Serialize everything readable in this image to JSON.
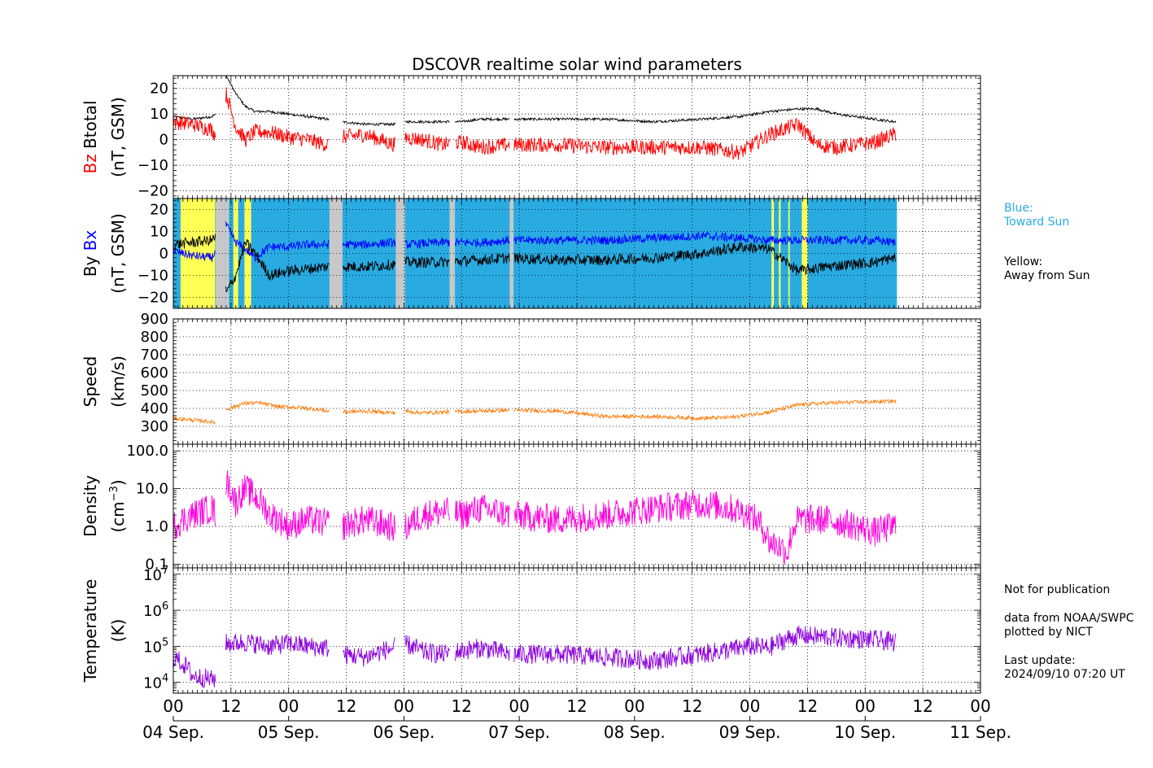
{
  "title": "DSCOVR realtime solar wind parameters",
  "panels": {
    "btotal": {
      "ylabel_parts": [
        "Bz",
        "Btotal"
      ],
      "ylabel_colors": [
        "#ff0000",
        "#000000"
      ],
      "yunit": "(nT, GSM)",
      "yticks": [
        "20",
        "10",
        "0",
        "−10",
        "−20"
      ]
    },
    "by": {
      "ylabel_parts": [
        "By",
        "Bx"
      ],
      "ylabel_colors": [
        "#000000",
        "#0000ff"
      ],
      "yunit": "(nT, GSM)",
      "yticks": [
        "20",
        "10",
        "0",
        "−10",
        "−20"
      ]
    },
    "speed": {
      "ylabel": "Speed",
      "yunit": "(km/s)",
      "yticks": [
        "900",
        "800",
        "700",
        "600",
        "500",
        "400",
        "300"
      ]
    },
    "density": {
      "ylabel": "Density",
      "yunit_base": "(cm",
      "yunit_sup": "−3",
      "yunit_end": ")",
      "yticks": [
        "100.0",
        "10.0",
        "1.0",
        "0.1"
      ]
    },
    "temperature": {
      "ylabel": "Temperature",
      "yunit": "(K)",
      "yticks_base": [
        "10",
        "10",
        "10",
        "10"
      ],
      "yticks_exp": [
        "7",
        "6",
        "5",
        "4"
      ]
    }
  },
  "xaxis": {
    "hour_labels": [
      "00",
      "12",
      "00",
      "12",
      "00",
      "12",
      "00",
      "12",
      "00",
      "12",
      "00",
      "12",
      "00",
      "12",
      "00"
    ],
    "date_labels": [
      "04 Sep.",
      "05 Sep.",
      "06 Sep.",
      "07 Sep.",
      "08 Sep.",
      "09 Sep.",
      "10 Sep.",
      "11 Sep."
    ]
  },
  "legend": {
    "blue": "Blue:\nToward Sun",
    "yellow": "Yellow:\nAway from Sun"
  },
  "notes": {
    "publication": "Not for publication",
    "source": "data from NOAA/SWPC\nplotted by NICT",
    "update": "Last update:\n2024/09/10 07:20 UT"
  },
  "colors": {
    "bz": "#ff0000",
    "btotal": "#000000",
    "bx": "#0000ff",
    "by": "#000000",
    "speed": "#ff7f0e",
    "density": "#ff00dd",
    "temperature": "#8b00dd",
    "toward_sun": "#29abe2",
    "away_sun": "#ffff55",
    "no_data": "#c8c8c8",
    "legend_blue": "#29abe2"
  },
  "chart_data": [
    {
      "type": "line",
      "panel": "btotal",
      "x_unit": "hours since 04 Sep. 00 UT",
      "xlim": [
        0,
        168
      ],
      "ylim": [
        -23,
        25
      ],
      "series": [
        {
          "name": "Btotal",
          "points": [
            [
              0,
              9
            ],
            [
              4,
              8
            ],
            [
              8,
              9
            ],
            [
              9,
              10
            ],
            [
              11,
              25
            ],
            [
              13,
              18
            ],
            [
              15,
              13
            ],
            [
              17,
              11
            ],
            [
              20,
              11
            ],
            [
              24,
              10
            ],
            [
              28,
              9
            ],
            [
              32,
              8
            ],
            [
              35,
              7
            ],
            [
              40,
              6
            ],
            [
              46,
              6
            ],
            [
              48,
              7
            ],
            [
              52,
              7
            ],
            [
              56,
              7
            ],
            [
              60,
              7
            ],
            [
              64,
              8
            ],
            [
              70,
              8
            ],
            [
              80,
              8
            ],
            [
              90,
              8
            ],
            [
              100,
              7
            ],
            [
              110,
              8
            ],
            [
              118,
              9
            ],
            [
              124,
              11
            ],
            [
              130,
              12
            ],
            [
              134,
              12
            ],
            [
              138,
              10
            ],
            [
              146,
              8
            ],
            [
              150,
              7
            ]
          ]
        },
        {
          "name": "Bz",
          "points": [
            [
              0,
              7
            ],
            [
              4,
              6
            ],
            [
              8,
              4
            ],
            [
              9,
              1
            ],
            [
              11,
              18
            ],
            [
              13,
              5
            ],
            [
              15,
              0
            ],
            [
              17,
              3
            ],
            [
              20,
              3
            ],
            [
              24,
              1
            ],
            [
              28,
              0
            ],
            [
              32,
              -2
            ],
            [
              35,
              1
            ],
            [
              40,
              2
            ],
            [
              46,
              -2
            ],
            [
              48,
              1
            ],
            [
              52,
              0
            ],
            [
              56,
              -2
            ],
            [
              60,
              -1
            ],
            [
              64,
              -3
            ],
            [
              70,
              -2
            ],
            [
              80,
              -2
            ],
            [
              90,
              -3
            ],
            [
              100,
              -3
            ],
            [
              110,
              -3
            ],
            [
              118,
              -5
            ],
            [
              124,
              2
            ],
            [
              130,
              6
            ],
            [
              134,
              -2
            ],
            [
              138,
              -3
            ],
            [
              146,
              -1
            ],
            [
              150,
              2
            ]
          ]
        }
      ]
    },
    {
      "type": "line",
      "panel": "by",
      "ylim": [
        -25,
        25
      ],
      "series": [
        {
          "name": "Bx",
          "points": [
            [
              0,
              1
            ],
            [
              4,
              -1
            ],
            [
              8,
              -2
            ],
            [
              9,
              2
            ],
            [
              11,
              13
            ],
            [
              13,
              5
            ],
            [
              15,
              2
            ],
            [
              17,
              -2
            ],
            [
              20,
              3
            ],
            [
              24,
              3
            ],
            [
              28,
              4
            ],
            [
              32,
              4
            ],
            [
              36,
              4
            ],
            [
              40,
              4
            ],
            [
              46,
              5
            ],
            [
              48,
              4
            ],
            [
              56,
              5
            ],
            [
              64,
              5
            ],
            [
              70,
              6
            ],
            [
              80,
              6
            ],
            [
              90,
              6
            ],
            [
              100,
              7
            ],
            [
              110,
              8
            ],
            [
              118,
              7
            ],
            [
              124,
              6
            ],
            [
              130,
              6
            ],
            [
              136,
              6
            ],
            [
              146,
              6
            ],
            [
              150,
              5
            ]
          ]
        },
        {
          "name": "By",
          "points": [
            [
              0,
              4
            ],
            [
              4,
              5
            ],
            [
              8,
              6
            ],
            [
              9,
              8
            ],
            [
              11,
              -18
            ],
            [
              13,
              -10
            ],
            [
              15,
              5
            ],
            [
              17,
              0
            ],
            [
              20,
              -10
            ],
            [
              24,
              -8
            ],
            [
              28,
              -7
            ],
            [
              32,
              -6
            ],
            [
              36,
              -6
            ],
            [
              40,
              -6
            ],
            [
              46,
              -5
            ],
            [
              48,
              -4
            ],
            [
              56,
              -4
            ],
            [
              64,
              -3
            ],
            [
              70,
              -2
            ],
            [
              80,
              -3
            ],
            [
              90,
              -3
            ],
            [
              100,
              -2
            ],
            [
              110,
              0
            ],
            [
              118,
              3
            ],
            [
              124,
              2
            ],
            [
              130,
              -8
            ],
            [
              136,
              -6
            ],
            [
              146,
              -4
            ],
            [
              150,
              -2
            ]
          ]
        }
      ]
    },
    {
      "type": "line",
      "panel": "speed",
      "ylim": [
        200,
        900
      ],
      "series": [
        {
          "name": "Speed",
          "points": [
            [
              0,
              345
            ],
            [
              4,
              335
            ],
            [
              8,
              325
            ],
            [
              9,
              320
            ],
            [
              11,
              395
            ],
            [
              15,
              430
            ],
            [
              18,
              430
            ],
            [
              22,
              410
            ],
            [
              26,
              405
            ],
            [
              30,
              395
            ],
            [
              32,
              385
            ],
            [
              35,
              380
            ],
            [
              40,
              385
            ],
            [
              46,
              375
            ],
            [
              48,
              385
            ],
            [
              52,
              375
            ],
            [
              56,
              380
            ],
            [
              64,
              385
            ],
            [
              70,
              390
            ],
            [
              80,
              385
            ],
            [
              90,
              355
            ],
            [
              100,
              355
            ],
            [
              110,
              345
            ],
            [
              116,
              350
            ],
            [
              120,
              365
            ],
            [
              124,
              380
            ],
            [
              130,
              420
            ],
            [
              136,
              430
            ],
            [
              142,
              435
            ],
            [
              150,
              440
            ]
          ]
        }
      ]
    },
    {
      "type": "line",
      "panel": "density",
      "yscale": "log",
      "ylim": [
        0.08,
        150
      ],
      "series": [
        {
          "name": "Density",
          "points": [
            [
              0,
              1
            ],
            [
              4,
              2
            ],
            [
              8,
              3
            ],
            [
              9,
              2
            ],
            [
              11,
              15
            ],
            [
              13,
              4
            ],
            [
              15,
              10
            ],
            [
              17,
              6
            ],
            [
              20,
              2
            ],
            [
              24,
              1
            ],
            [
              28,
              1.5
            ],
            [
              32,
              1.2
            ],
            [
              35,
              1
            ],
            [
              40,
              1.5
            ],
            [
              46,
              0.9
            ],
            [
              48,
              0.8
            ],
            [
              52,
              2
            ],
            [
              56,
              2.5
            ],
            [
              60,
              2
            ],
            [
              64,
              3
            ],
            [
              70,
              2
            ],
            [
              80,
              1.5
            ],
            [
              90,
              2
            ],
            [
              100,
              3
            ],
            [
              110,
              4
            ],
            [
              116,
              3
            ],
            [
              120,
              2
            ],
            [
              124,
              0.4
            ],
            [
              128,
              0.2
            ],
            [
              130,
              1.5
            ],
            [
              136,
              1.5
            ],
            [
              146,
              0.7
            ],
            [
              150,
              1
            ]
          ]
        }
      ]
    },
    {
      "type": "line",
      "panel": "temperature",
      "yscale": "log",
      "ylim": [
        5000,
        15000000
      ],
      "series": [
        {
          "name": "Temperature",
          "points": [
            [
              0,
              50000
            ],
            [
              4,
              15000
            ],
            [
              8,
              12000
            ],
            [
              9,
              13000
            ],
            [
              11,
              120000
            ],
            [
              15,
              130000
            ],
            [
              20,
              100000
            ],
            [
              24,
              120000
            ],
            [
              28,
              100000
            ],
            [
              32,
              90000
            ],
            [
              35,
              60000
            ],
            [
              40,
              50000
            ],
            [
              46,
              90000
            ],
            [
              48,
              120000
            ],
            [
              52,
              70000
            ],
            [
              56,
              60000
            ],
            [
              64,
              90000
            ],
            [
              70,
              60000
            ],
            [
              80,
              60000
            ],
            [
              90,
              50000
            ],
            [
              100,
              40000
            ],
            [
              110,
              60000
            ],
            [
              116,
              80000
            ],
            [
              120,
              100000
            ],
            [
              124,
              90000
            ],
            [
              130,
              200000
            ],
            [
              136,
              180000
            ],
            [
              146,
              150000
            ],
            [
              150,
              130000
            ]
          ]
        }
      ]
    }
  ]
}
